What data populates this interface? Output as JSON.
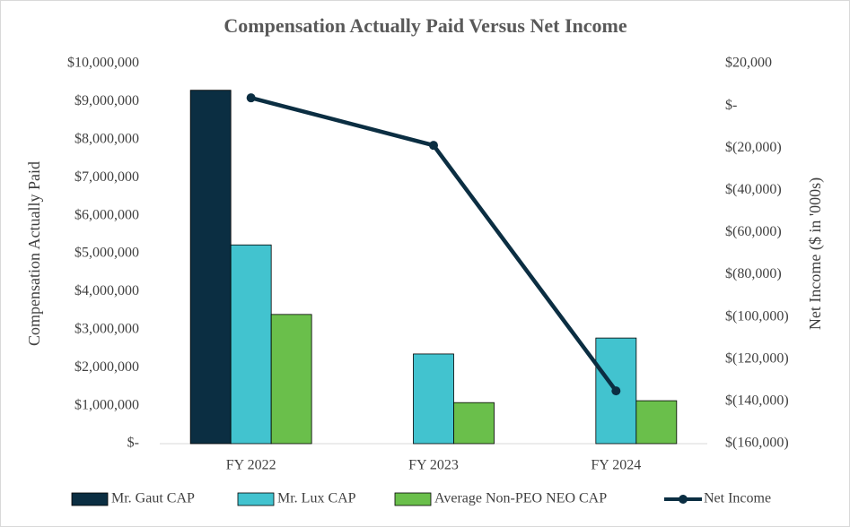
{
  "chart_data": {
    "type": "bar",
    "title": "Compensation Actually Paid Versus Net Income",
    "y_label": "Compensation Actually Paid",
    "y2_label": "Net Income ($ in '000s)",
    "categories": [
      "FY 2022",
      "FY 2023",
      "FY 2024"
    ],
    "series": [
      {
        "name": "Mr. Gaut CAP",
        "color": "#0b2e42",
        "values": [
          9300000,
          null,
          null
        ]
      },
      {
        "name": "Mr. Lux CAP",
        "color": "#42c3cf",
        "values": [
          5230000,
          2360000,
          2780000
        ]
      },
      {
        "name": "Average Non-PEO NEO CAP",
        "color": "#6abf4b",
        "values": [
          3400000,
          1080000,
          1130000
        ]
      },
      {
        "name": "Net Income",
        "color": "#0b2e42",
        "type": "line",
        "axis": "y2",
        "values": [
          3800,
          -18700,
          -135000
        ]
      }
    ],
    "ylim": [
      0,
      10000000
    ],
    "yticks": [
      {
        "value": 0,
        "label": "$-"
      },
      {
        "value": 1000000,
        "label": "$1,000,000"
      },
      {
        "value": 2000000,
        "label": "$2,000,000"
      },
      {
        "value": 3000000,
        "label": "$3,000,000"
      },
      {
        "value": 4000000,
        "label": "$4,000,000"
      },
      {
        "value": 5000000,
        "label": "$5,000,000"
      },
      {
        "value": 6000000,
        "label": "$6,000,000"
      },
      {
        "value": 7000000,
        "label": "$7,000,000"
      },
      {
        "value": 8000000,
        "label": "$8,000,000"
      },
      {
        "value": 9000000,
        "label": "$9,000,000"
      },
      {
        "value": 10000000,
        "label": "$10,000,000"
      }
    ],
    "y2lim": [
      -160000,
      20000
    ],
    "y2ticks": [
      {
        "value": -160000,
        "label": "$(160,000)"
      },
      {
        "value": -140000,
        "label": "$(140,000)"
      },
      {
        "value": -120000,
        "label": "$(120,000)"
      },
      {
        "value": -100000,
        "label": "$(100,000)"
      },
      {
        "value": -80000,
        "label": "$(80,000)"
      },
      {
        "value": -60000,
        "label": "$(60,000)"
      },
      {
        "value": -40000,
        "label": "$(40,000)"
      },
      {
        "value": -20000,
        "label": "$(20,000)"
      },
      {
        "value": 0,
        "label": "$-"
      },
      {
        "value": 20000,
        "label": "$20,000"
      }
    ],
    "legend": "bottom",
    "grid": false
  }
}
